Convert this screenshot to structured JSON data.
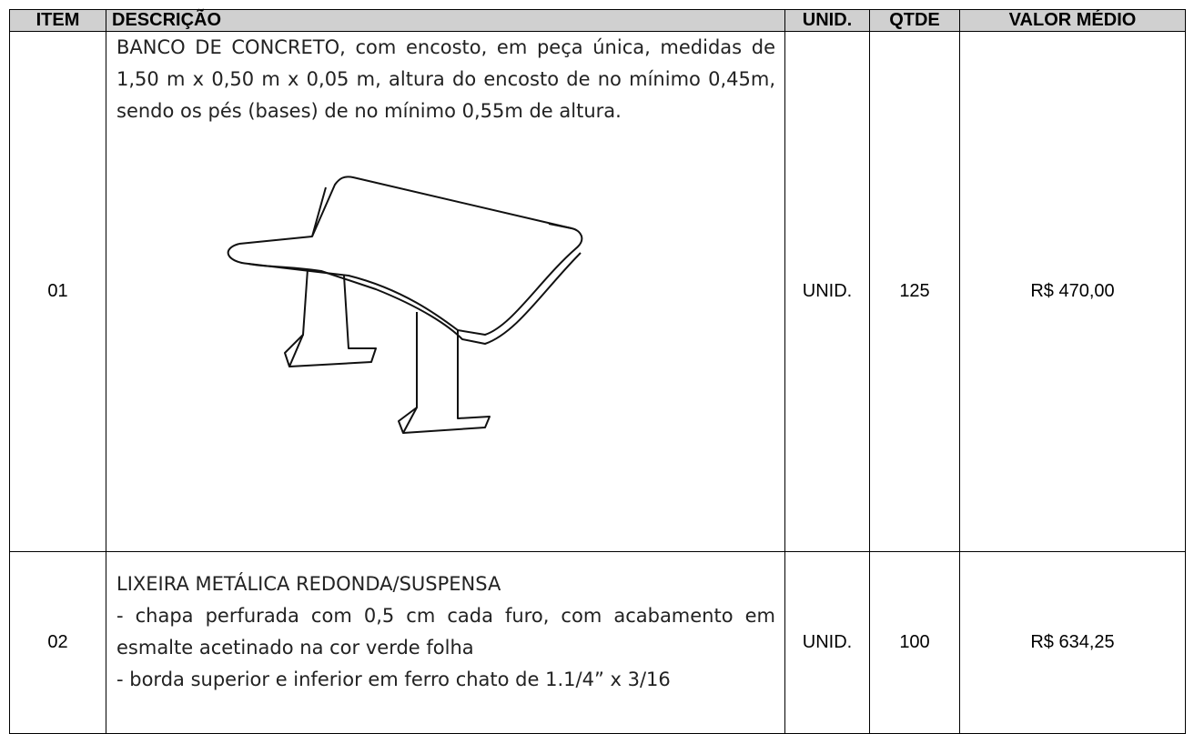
{
  "table": {
    "header": [
      "ITEM",
      "DESCRIÇÃO",
      "UNID.",
      "QTDE",
      "VALOR MÉDIO"
    ],
    "rows": [
      {
        "item": "01",
        "description": [
          "BANCO DE CONCRETO, com encosto, em peça única, medidas de 1,50 m x 0,50 m x 0,05 m, altura do encosto de no mínimo 0,45m, sendo os pés (bases) de no mínimo 0,55m de altura."
        ],
        "unit": "UNID.",
        "qty": 125,
        "price": "R$ 470,00"
      },
      {
        "item": "02",
        "description": [
          "LIXEIRA METÁLICA REDONDA/SUSPENSA",
          "- chapa perfurada com 0,5 cm cada furo, com acabamento em esmalte acetinado na cor verde folha",
          "- borda superior e inferior em ferro chato de 1.1/4” x 3/16"
        ],
        "unit": "UNID.",
        "qty": 100,
        "price": "R$ 634,25"
      }
    ]
  }
}
